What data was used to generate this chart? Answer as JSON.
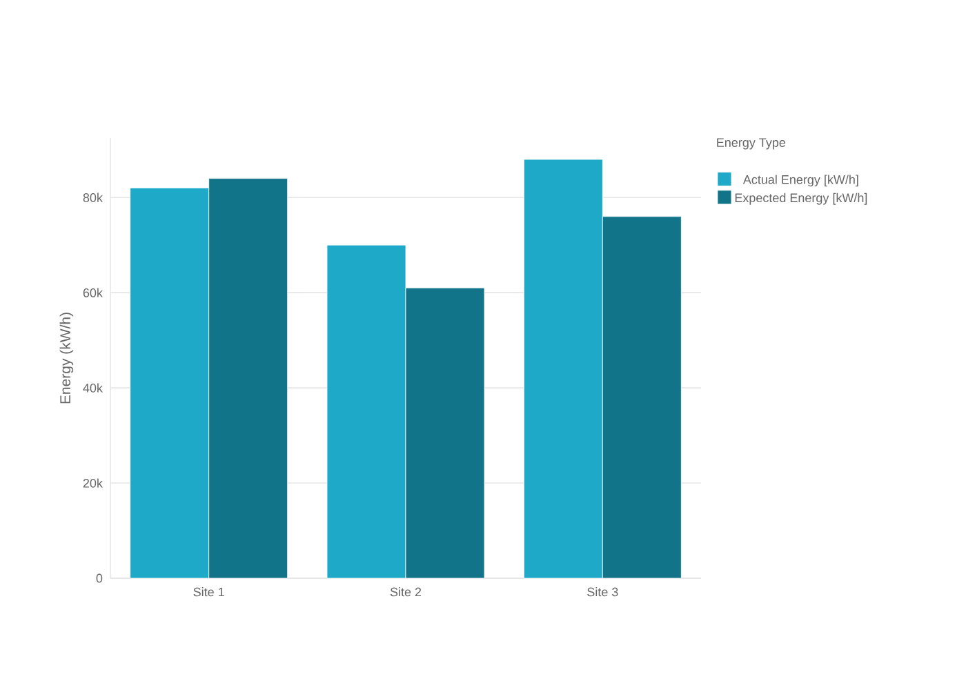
{
  "chart_data": {
    "type": "bar",
    "ylabel": "Energy (kW/h)",
    "legend_title": "Energy Type",
    "categories": [
      "Site 1",
      "Site 2",
      "Site 3"
    ],
    "series": [
      {
        "name": "Actual Energy [kW/h]",
        "color": "#1ea9c8",
        "values": [
          82000,
          70000,
          88000
        ]
      },
      {
        "name": "Expected Energy [kW/h]",
        "color": "#127489",
        "values": [
          84000,
          61000,
          76000
        ]
      }
    ],
    "ylim": [
      0,
      92500
    ],
    "yticks": [
      0,
      {
        "value": 20000,
        "label": "20k"
      },
      {
        "value": 40000,
        "label": "40k"
      },
      {
        "value": 60000,
        "label": "60k"
      },
      {
        "value": 80000,
        "label": "80k"
      }
    ],
    "grid": "y",
    "legend": "top right"
  }
}
